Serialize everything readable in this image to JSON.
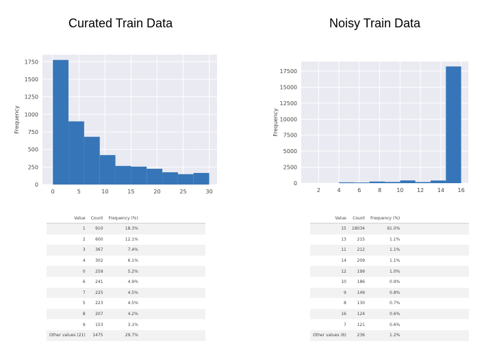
{
  "panels": [
    {
      "title": "Curated Train Data"
    },
    {
      "title": "Noisy Train Data"
    }
  ],
  "chart_data": [
    {
      "type": "bar",
      "title": "",
      "xlabel": "",
      "ylabel": "Frequency",
      "bin_edges": [
        0,
        3,
        6,
        9,
        12,
        15,
        18,
        21,
        24,
        27,
        30
      ],
      "values": [
        1775,
        900,
        680,
        420,
        265,
        255,
        225,
        175,
        148,
        165
      ],
      "xlim": [
        -2,
        31.5
      ],
      "ylim": [
        0,
        1850
      ],
      "xticks": [
        0,
        5,
        10,
        15,
        20,
        25,
        30
      ],
      "yticks": [
        0,
        250,
        500,
        750,
        1000,
        1250,
        1500,
        1750
      ],
      "grid": true,
      "bar_color": "#3676b8",
      "background": "#eaeaf2"
    },
    {
      "type": "bar",
      "title": "",
      "xlabel": "",
      "ylabel": "Frequency",
      "bin_edges": [
        1,
        2.5,
        4,
        5.5,
        7,
        8.5,
        10,
        11.5,
        13,
        14.5,
        16
      ],
      "values": [
        0,
        0,
        130,
        100,
        255,
        190,
        430,
        175,
        420,
        18230
      ],
      "xlim": [
        0.3,
        16.7
      ],
      "ylim": [
        0,
        19000
      ],
      "xticks": [
        2,
        4,
        6,
        8,
        10,
        12,
        14,
        16
      ],
      "yticks": [
        0,
        2500,
        5000,
        7500,
        10000,
        12500,
        15000,
        17500
      ],
      "grid": true,
      "bar_color": "#3676b8",
      "background": "#eaeaf2"
    }
  ],
  "tables": [
    {
      "headers": [
        "Value",
        "Count",
        "Frequency (%)"
      ],
      "rows": [
        [
          "1",
          "910",
          "18.3%"
        ],
        [
          "2",
          "600",
          "12.1%"
        ],
        [
          "3",
          "367",
          "7.4%"
        ],
        [
          "4",
          "302",
          "6.1%"
        ],
        [
          "0",
          "259",
          "5.2%"
        ],
        [
          "6",
          "241",
          "4.9%"
        ],
        [
          "7",
          "225",
          "4.5%"
        ],
        [
          "5",
          "223",
          "4.5%"
        ],
        [
          "8",
          "207",
          "4.2%"
        ],
        [
          "9",
          "153",
          "3.1%"
        ],
        [
          "Other values (21)",
          "1475",
          "29.7%"
        ]
      ]
    },
    {
      "headers": [
        "Value",
        "Count",
        "Frequency (%)"
      ],
      "rows": [
        [
          "15",
          "18034",
          "91.0%"
        ],
        [
          "13",
          "215",
          "1.1%"
        ],
        [
          "11",
          "212",
          "1.1%"
        ],
        [
          "14",
          "209",
          "1.1%"
        ],
        [
          "12",
          "199",
          "1.0%"
        ],
        [
          "10",
          "186",
          "0.9%"
        ],
        [
          "9",
          "149",
          "0.8%"
        ],
        [
          "8",
          "130",
          "0.7%"
        ],
        [
          "16",
          "124",
          "0.6%"
        ],
        [
          "7",
          "121",
          "0.6%"
        ],
        [
          "Other values (6)",
          "236",
          "1.2%"
        ]
      ]
    }
  ]
}
